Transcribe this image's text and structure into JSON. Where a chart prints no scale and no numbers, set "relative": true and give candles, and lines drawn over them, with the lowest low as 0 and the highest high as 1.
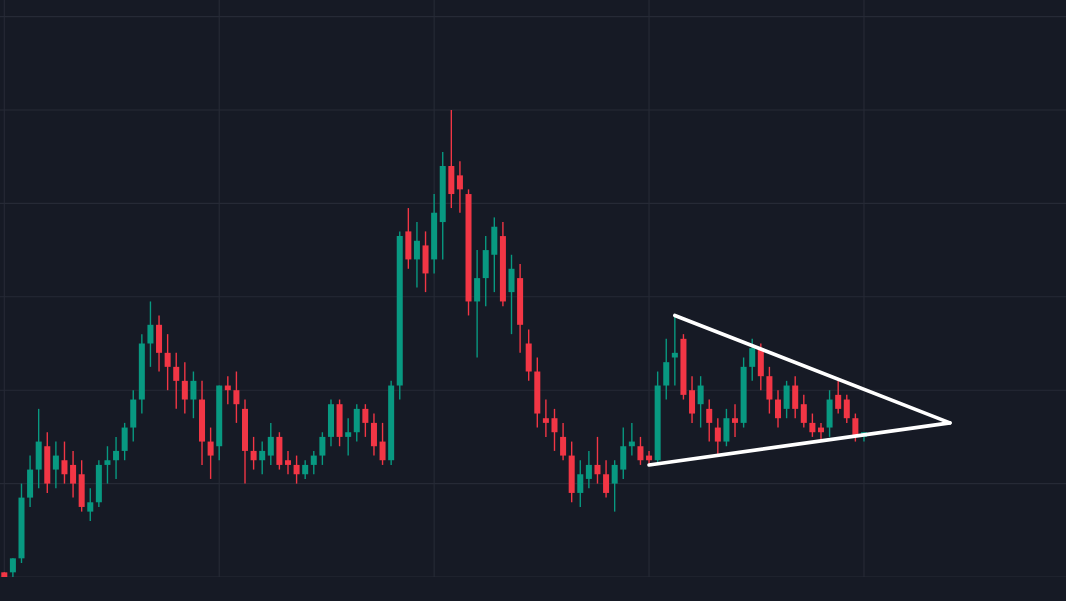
{
  "chart_data": {
    "type": "candlestick",
    "relative": true,
    "grid": true,
    "categories": [
      null,
      null,
      null,
      null,
      null,
      null,
      null,
      null,
      null,
      null,
      null,
      null,
      null,
      null,
      null,
      null,
      null,
      null,
      null,
      null,
      null,
      null,
      null,
      null,
      null,
      null,
      null,
      null,
      null,
      null,
      null,
      null,
      null,
      null,
      null,
      null,
      null,
      null,
      null,
      null,
      null,
      null,
      null,
      null,
      null,
      null,
      null,
      null,
      null,
      null,
      null,
      null,
      null,
      null,
      null,
      null,
      null,
      null,
      null,
      null,
      null,
      null,
      null,
      null,
      null,
      null,
      null,
      null,
      null,
      null,
      null,
      null,
      null,
      null,
      null,
      null,
      null,
      null,
      null,
      null,
      null,
      null,
      null,
      null,
      null,
      null,
      null,
      null,
      null,
      null,
      null,
      null,
      null,
      null,
      null,
      null,
      null,
      null,
      null,
      null,
      null,
      null,
      null,
      null,
      null,
      null,
      null,
      null,
      null,
      null,
      null,
      null,
      null,
      null,
      null,
      null,
      null,
      null,
      null,
      null,
      null,
      null,
      null,
      null
    ],
    "ohlc": [
      [
        0.01,
        0.01,
        0.0,
        0.0
      ],
      [
        0.01,
        0.04,
        0.0,
        0.04
      ],
      [
        0.04,
        0.2,
        0.03,
        0.17
      ],
      [
        0.17,
        0.26,
        0.15,
        0.23
      ],
      [
        0.23,
        0.36,
        0.19,
        0.29
      ],
      [
        0.28,
        0.31,
        0.18,
        0.2
      ],
      [
        0.23,
        0.29,
        0.19,
        0.26
      ],
      [
        0.25,
        0.29,
        0.2,
        0.22
      ],
      [
        0.24,
        0.27,
        0.17,
        0.2
      ],
      [
        0.22,
        0.25,
        0.14,
        0.15
      ],
      [
        0.14,
        0.19,
        0.12,
        0.16
      ],
      [
        0.16,
        0.25,
        0.15,
        0.24
      ],
      [
        0.24,
        0.28,
        0.2,
        0.25
      ],
      [
        0.25,
        0.3,
        0.21,
        0.27
      ],
      [
        0.27,
        0.33,
        0.25,
        0.32
      ],
      [
        0.32,
        0.4,
        0.29,
        0.38
      ],
      [
        0.38,
        0.52,
        0.35,
        0.5
      ],
      [
        0.5,
        0.59,
        0.45,
        0.54
      ],
      [
        0.54,
        0.56,
        0.44,
        0.48
      ],
      [
        0.48,
        0.52,
        0.4,
        0.45
      ],
      [
        0.45,
        0.48,
        0.36,
        0.42
      ],
      [
        0.42,
        0.46,
        0.35,
        0.38
      ],
      [
        0.38,
        0.44,
        0.34,
        0.42
      ],
      [
        0.38,
        0.42,
        0.24,
        0.29
      ],
      [
        0.29,
        0.32,
        0.21,
        0.26
      ],
      [
        0.28,
        0.41,
        0.25,
        0.41
      ],
      [
        0.41,
        0.43,
        0.37,
        0.4
      ],
      [
        0.4,
        0.44,
        0.33,
        0.37
      ],
      [
        0.36,
        0.38,
        0.2,
        0.27
      ],
      [
        0.27,
        0.3,
        0.23,
        0.25
      ],
      [
        0.25,
        0.29,
        0.22,
        0.27
      ],
      [
        0.26,
        0.33,
        0.24,
        0.3
      ],
      [
        0.3,
        0.31,
        0.23,
        0.24
      ],
      [
        0.25,
        0.27,
        0.22,
        0.24
      ],
      [
        0.24,
        0.26,
        0.2,
        0.22
      ],
      [
        0.22,
        0.25,
        0.21,
        0.24
      ],
      [
        0.24,
        0.27,
        0.22,
        0.26
      ],
      [
        0.26,
        0.31,
        0.24,
        0.3
      ],
      [
        0.3,
        0.38,
        0.28,
        0.37
      ],
      [
        0.37,
        0.38,
        0.28,
        0.3
      ],
      [
        0.3,
        0.34,
        0.26,
        0.31
      ],
      [
        0.31,
        0.37,
        0.29,
        0.36
      ],
      [
        0.36,
        0.37,
        0.3,
        0.33
      ],
      [
        0.33,
        0.35,
        0.26,
        0.28
      ],
      [
        0.29,
        0.33,
        0.24,
        0.25
      ],
      [
        0.25,
        0.42,
        0.24,
        0.41
      ],
      [
        0.41,
        0.74,
        0.38,
        0.73
      ],
      [
        0.74,
        0.79,
        0.66,
        0.68
      ],
      [
        0.68,
        0.76,
        0.62,
        0.72
      ],
      [
        0.71,
        0.74,
        0.61,
        0.65
      ],
      [
        0.68,
        0.82,
        0.65,
        0.78
      ],
      [
        0.76,
        0.91,
        0.68,
        0.88
      ],
      [
        0.88,
        1.0,
        0.79,
        0.82
      ],
      [
        0.86,
        0.89,
        0.78,
        0.83
      ],
      [
        0.82,
        0.83,
        0.56,
        0.59
      ],
      [
        0.59,
        0.7,
        0.47,
        0.64
      ],
      [
        0.64,
        0.73,
        0.58,
        0.7
      ],
      [
        0.69,
        0.77,
        0.61,
        0.75
      ],
      [
        0.73,
        0.76,
        0.58,
        0.59
      ],
      [
        0.61,
        0.69,
        0.52,
        0.66
      ],
      [
        0.64,
        0.67,
        0.48,
        0.54
      ],
      [
        0.5,
        0.53,
        0.42,
        0.44
      ],
      [
        0.44,
        0.47,
        0.32,
        0.35
      ],
      [
        0.34,
        0.38,
        0.3,
        0.33
      ],
      [
        0.34,
        0.36,
        0.27,
        0.31
      ],
      [
        0.3,
        0.33,
        0.25,
        0.26
      ],
      [
        0.26,
        0.29,
        0.16,
        0.18
      ],
      [
        0.18,
        0.25,
        0.15,
        0.22
      ],
      [
        0.21,
        0.27,
        0.19,
        0.24
      ],
      [
        0.24,
        0.3,
        0.2,
        0.22
      ],
      [
        0.22,
        0.25,
        0.17,
        0.18
      ],
      [
        0.2,
        0.25,
        0.14,
        0.24
      ],
      [
        0.23,
        0.32,
        0.21,
        0.28
      ],
      [
        0.28,
        0.33,
        0.26,
        0.29
      ],
      [
        0.28,
        0.3,
        0.24,
        0.25
      ],
      [
        0.26,
        0.27,
        0.24,
        0.25
      ],
      [
        0.25,
        0.44,
        0.24,
        0.41
      ],
      [
        0.41,
        0.51,
        0.38,
        0.46
      ],
      [
        0.47,
        0.56,
        0.41,
        0.48
      ],
      [
        0.51,
        0.52,
        0.38,
        0.39
      ],
      [
        0.4,
        0.43,
        0.33,
        0.35
      ],
      [
        0.37,
        0.43,
        0.32,
        0.41
      ],
      [
        0.36,
        0.38,
        0.29,
        0.33
      ],
      [
        0.32,
        0.34,
        0.26,
        0.29
      ],
      [
        0.29,
        0.36,
        0.28,
        0.34
      ],
      [
        0.34,
        0.37,
        0.3,
        0.33
      ],
      [
        0.33,
        0.47,
        0.32,
        0.45
      ],
      [
        0.45,
        0.51,
        0.42,
        0.49
      ],
      [
        0.49,
        0.5,
        0.4,
        0.43
      ],
      [
        0.43,
        0.45,
        0.35,
        0.38
      ],
      [
        0.38,
        0.4,
        0.32,
        0.34
      ],
      [
        0.36,
        0.42,
        0.34,
        0.41
      ],
      [
        0.41,
        0.43,
        0.34,
        0.36
      ],
      [
        0.37,
        0.39,
        0.32,
        0.33
      ],
      [
        0.33,
        0.35,
        0.3,
        0.31
      ],
      [
        0.32,
        0.33,
        0.29,
        0.31
      ],
      [
        0.32,
        0.4,
        0.3,
        0.38
      ],
      [
        0.39,
        0.42,
        0.35,
        0.36
      ],
      [
        0.38,
        0.39,
        0.33,
        0.34
      ],
      [
        0.34,
        0.35,
        0.29,
        0.3
      ],
      [
        0.3,
        0.31,
        0.29,
        0.31
      ],
      null,
      null,
      null,
      null,
      null,
      null,
      null,
      null,
      null,
      null,
      null,
      null,
      null,
      null,
      null,
      null,
      null,
      null,
      null,
      null,
      null,
      null,
      null
    ],
    "colors": [
      "#f23645",
      "#089981",
      "#089981",
      "#089981",
      "#089981",
      "#f23645",
      "#089981",
      "#f23645",
      "#f23645",
      "#f23645",
      "#089981",
      "#089981",
      "#089981",
      "#089981",
      "#089981",
      "#089981",
      "#089981",
      "#089981",
      "#f23645",
      "#f23645",
      "#f23645",
      "#f23645",
      "#089981",
      "#f23645",
      "#f23645",
      "#089981",
      "#f23645",
      "#f23645",
      "#f23645",
      "#f23645",
      "#089981",
      "#089981",
      "#f23645",
      "#f23645",
      "#f23645",
      "#089981",
      "#089981",
      "#089981",
      "#089981",
      "#f23645",
      "#089981",
      "#089981",
      "#f23645",
      "#f23645",
      "#f23645",
      "#089981",
      "#089981",
      "#f23645",
      "#089981",
      "#f23645",
      "#089981",
      "#089981",
      "#f23645",
      "#f23645",
      "#f23645",
      "#089981",
      "#089981",
      "#089981",
      "#f23645",
      "#089981",
      "#f23645",
      "#f23645",
      "#f23645",
      "#f23645",
      "#f23645",
      "#f23645",
      "#f23645",
      "#089981",
      "#089981",
      "#f23645",
      "#f23645",
      "#089981",
      "#089981",
      "#089981",
      "#f23645",
      "#f23645",
      "#089981",
      "#089981",
      "#089981",
      "#f23645",
      "#f23645",
      "#089981",
      "#f23645",
      "#f23645",
      "#089981",
      "#f23645",
      "#089981",
      "#089981",
      "#f23645",
      "#f23645",
      "#f23645",
      "#089981",
      "#f23645",
      "#f23645",
      "#f23645",
      "#f23645",
      "#089981",
      "#f23645",
      "#f23645",
      "#f23645",
      "#089981",
      null,
      null,
      null,
      null,
      null,
      null,
      null,
      null,
      null,
      null,
      null,
      null,
      null,
      null,
      null,
      null,
      null,
      null,
      null,
      null,
      null,
      null,
      null
    ],
    "series": [
      {
        "type": "line",
        "color": "#ffffff",
        "values": [
          null,
          null,
          null,
          null,
          null,
          null,
          null,
          null,
          null,
          null,
          null,
          null,
          null,
          null,
          null,
          null,
          null,
          null,
          null,
          null,
          null,
          null,
          null,
          null,
          null,
          null,
          null,
          null,
          null,
          null,
          null,
          null,
          null,
          null,
          null,
          null,
          null,
          null,
          null,
          null,
          null,
          null,
          null,
          null,
          null,
          null,
          null,
          null,
          null,
          null,
          null,
          null,
          null,
          null,
          null,
          null,
          null,
          null,
          null,
          null,
          null,
          null,
          null,
          null,
          null,
          null,
          null,
          null,
          null,
          null,
          null,
          null,
          null,
          null,
          null,
          0.24,
          null,
          null,
          null,
          null,
          null,
          null,
          null,
          null,
          null,
          null,
          null,
          null,
          null,
          null,
          null,
          null,
          null,
          null,
          null,
          null,
          null,
          null,
          null,
          null,
          null,
          null,
          null,
          null,
          null,
          null,
          null,
          null,
          null,
          null,
          0.33,
          null,
          null,
          null,
          null,
          null,
          null,
          null,
          null,
          null,
          null,
          null,
          null,
          null
        ]
      },
      {
        "type": "line",
        "color": "#ffffff",
        "values": [
          null,
          null,
          null,
          null,
          null,
          null,
          null,
          null,
          null,
          null,
          null,
          null,
          null,
          null,
          null,
          null,
          null,
          null,
          null,
          null,
          null,
          null,
          null,
          null,
          null,
          null,
          null,
          null,
          null,
          null,
          null,
          null,
          null,
          null,
          null,
          null,
          null,
          null,
          null,
          null,
          null,
          null,
          null,
          null,
          null,
          null,
          null,
          null,
          null,
          null,
          null,
          null,
          null,
          null,
          null,
          null,
          null,
          null,
          null,
          null,
          null,
          null,
          null,
          null,
          null,
          null,
          null,
          null,
          null,
          null,
          null,
          null,
          null,
          null,
          null,
          null,
          null,
          null,
          0.56,
          null,
          null,
          null,
          null,
          null,
          null,
          null,
          null,
          null,
          null,
          null,
          null,
          null,
          null,
          null,
          null,
          null,
          null,
          null,
          null,
          null,
          null,
          null,
          null,
          null,
          null,
          null,
          null,
          null,
          null,
          null,
          0.33,
          null,
          null,
          null,
          null,
          null,
          null,
          null,
          null,
          null,
          null,
          null,
          null,
          null
        ]
      }
    ]
  }
}
